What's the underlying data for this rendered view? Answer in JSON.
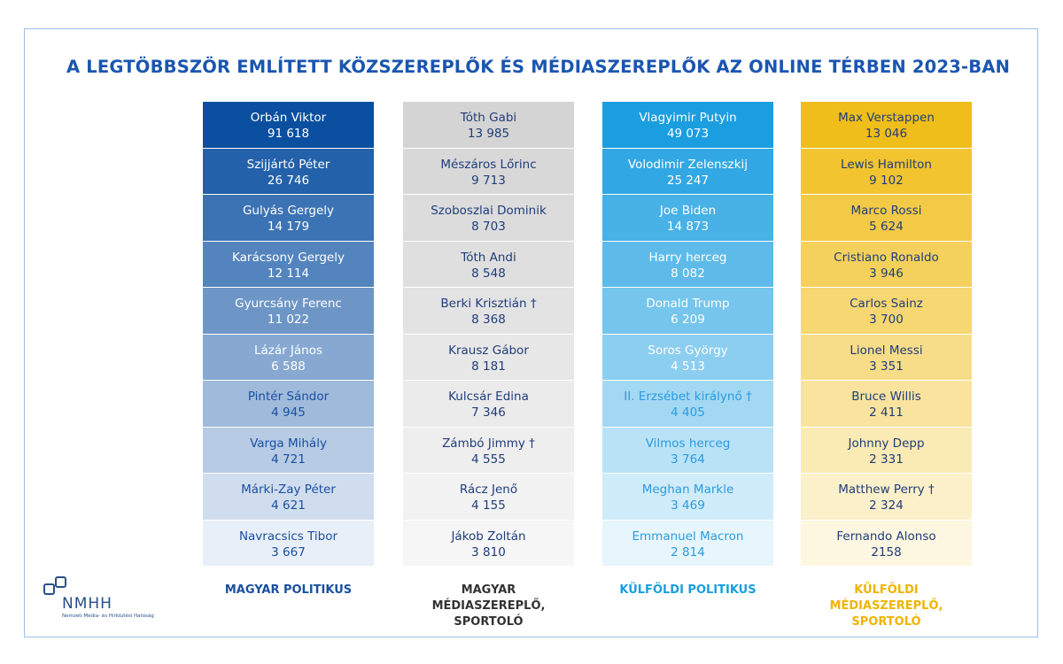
{
  "title": "A LEGTÖBBSZÖR EMLÍTETT KÖZSZEREPLŐK ÉS MÉDIASZEREPLŐK AZ ONLINE TÉRBEN 2023-BAN",
  "columns": [
    {
      "label": "MAGYAR POLITIKUS",
      "rows": [
        {
          "name": "Orbán Viktor",
          "value": "91 618"
        },
        {
          "name": "Szijjártó Péter",
          "value": "26 746"
        },
        {
          "name": "Gulyás Gergely",
          "value": "14 179"
        },
        {
          "name": "Karácsony Gergely",
          "value": "12 114"
        },
        {
          "name": "Gyurcsány Ferenc",
          "value": "11 022"
        },
        {
          "name": "Lázár János",
          "value": "6 588"
        },
        {
          "name": "Pintér Sándor",
          "value": "4 945"
        },
        {
          "name": "Varga Mihály",
          "value": "4 721"
        },
        {
          "name": "Márki-Zay Péter",
          "value": "4 621"
        },
        {
          "name": "Navracsics Tibor",
          "value": "3 667"
        }
      ]
    },
    {
      "label": "MAGYAR MÉDIASZEREPLŐ, SPORTOLÓ",
      "rows": [
        {
          "name": "Tóth Gabi",
          "value": "13 985"
        },
        {
          "name": "Mészáros Lőrinc",
          "value": "9 713"
        },
        {
          "name": "Szoboszlai Dominik",
          "value": "8 703"
        },
        {
          "name": "Tóth Andi",
          "value": "8 548"
        },
        {
          "name": "Berki Krisztián †",
          "value": "8 368"
        },
        {
          "name": "Krausz Gábor",
          "value": "8 181"
        },
        {
          "name": "Kulcsár Edina",
          "value": "7 346"
        },
        {
          "name": "Zámbó Jimmy †",
          "value": "4 555"
        },
        {
          "name": "Rácz Jenő",
          "value": "4 155"
        },
        {
          "name": "Jákob Zoltán",
          "value": "3 810"
        }
      ]
    },
    {
      "label": "KÜLFÖLDI POLITIKUS",
      "rows": [
        {
          "name": "Vlagyimir Putyin",
          "value": "49 073"
        },
        {
          "name": "Volodimir Zelenszkij",
          "value": "25 247"
        },
        {
          "name": "Joe Biden",
          "value": "14 873"
        },
        {
          "name": "Harry herceg",
          "value": "8 082"
        },
        {
          "name": "Donald Trump",
          "value": "6 209"
        },
        {
          "name": "Soros György",
          "value": "4 513"
        },
        {
          "name": "II. Erzsébet királynő †",
          "value": "4 405"
        },
        {
          "name": "Vilmos herceg",
          "value": "3 764"
        },
        {
          "name": "Meghan Markle",
          "value": "3 469"
        },
        {
          "name": "Emmanuel Macron",
          "value": "2 814"
        }
      ]
    },
    {
      "label": "KÜLFÖLDI MÉDIASZEREPLŐ, SPORTOLÓ",
      "rows": [
        {
          "name": "Max Verstappen",
          "value": "13 046"
        },
        {
          "name": "Lewis Hamilton",
          "value": "9 102"
        },
        {
          "name": "Marco Rossi",
          "value": "5 624"
        },
        {
          "name": "Cristiano Ronaldo",
          "value": "3 946"
        },
        {
          "name": "Carlos Sainz",
          "value": "3 700"
        },
        {
          "name": "Lionel Messi",
          "value": "3 351"
        },
        {
          "name": "Bruce Willis",
          "value": "2 411"
        },
        {
          "name": "Johnny Depp",
          "value": "2 331"
        },
        {
          "name": "Matthew Perry †",
          "value": "2 324"
        },
        {
          "name": "Fernando Alonso",
          "value": "2158"
        }
      ]
    }
  ],
  "logo": {
    "name": "NMHH",
    "subtitle": "Nemzeti Média- és Hírközlési Hatóság"
  }
}
